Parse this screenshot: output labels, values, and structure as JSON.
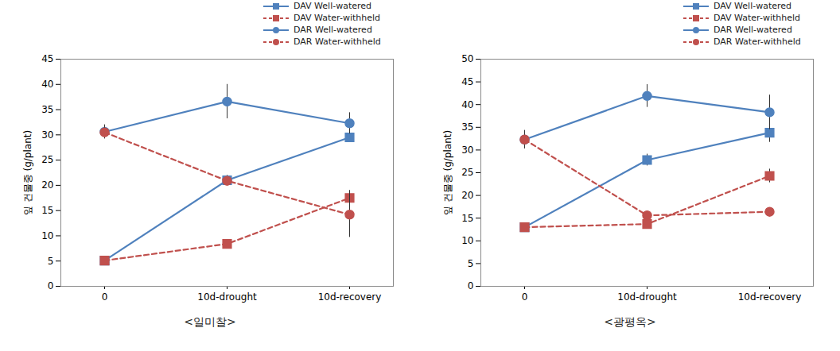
{
  "chart_data": [
    {
      "type": "line",
      "title": "<일미찰>",
      "ylabel": "잎 건물중 (g/plant)",
      "categories": [
        "0",
        "10d-drought",
        "10d-recovery"
      ],
      "ylim": [
        0,
        45
      ],
      "yticks": [
        0,
        5,
        10,
        15,
        20,
        25,
        30,
        35,
        40,
        45
      ],
      "grid": false,
      "legend": "upper right",
      "series": [
        {
          "name": "DAV Well-watered",
          "color": "#4f81bd",
          "marker": "square",
          "line_style": "solid",
          "values": [
            5.1,
            21.0,
            29.5
          ],
          "errors": [
            0.3,
            1.0,
            0.5
          ]
        },
        {
          "name": "DAV Water-withheld",
          "color": "#c0504d",
          "marker": "square",
          "line_style": "dashed",
          "values": [
            5.1,
            8.4,
            17.5
          ],
          "errors": [
            0.3,
            0.4,
            1.5
          ]
        },
        {
          "name": "DAR Well-watered",
          "color": "#4f81bd",
          "marker": "circle",
          "line_style": "solid",
          "values": [
            30.6,
            36.6,
            32.3
          ],
          "errors": [
            1.4,
            3.4,
            2.1
          ]
        },
        {
          "name": "DAR Water-withheld",
          "color": "#c0504d",
          "marker": "circle",
          "line_style": "dashed",
          "values": [
            30.5,
            20.9,
            14.2
          ],
          "errors": [
            1.2,
            0.8,
            4.5
          ]
        }
      ]
    },
    {
      "type": "line",
      "title": "<광평옥>",
      "ylabel": "잎 건물중 (g/plant)",
      "categories": [
        "0",
        "10d-drought",
        "10d-recovery"
      ],
      "ylim": [
        0,
        50
      ],
      "yticks": [
        0,
        5,
        10,
        15,
        20,
        25,
        30,
        35,
        40,
        45,
        50
      ],
      "grid": false,
      "legend": "upper right",
      "series": [
        {
          "name": "DAV Well-watered",
          "color": "#4f81bd",
          "marker": "square",
          "line_style": "solid",
          "values": [
            13.0,
            27.8,
            33.8
          ],
          "errors": [
            0.5,
            1.3,
            2.1
          ]
        },
        {
          "name": "DAV Water-withheld",
          "color": "#c0504d",
          "marker": "square",
          "line_style": "dashed",
          "values": [
            13.0,
            13.7,
            24.3
          ],
          "errors": [
            0.5,
            0.5,
            1.5
          ]
        },
        {
          "name": "DAR Well-watered",
          "color": "#4f81bd",
          "marker": "circle",
          "line_style": "solid",
          "values": [
            32.3,
            41.9,
            38.3
          ],
          "errors": [
            2.0,
            2.5,
            3.8
          ]
        },
        {
          "name": "DAR Water-withheld",
          "color": "#c0504d",
          "marker": "circle",
          "line_style": "dashed",
          "values": [
            32.3,
            15.6,
            16.4
          ],
          "errors": [
            2.0,
            0.8,
            0.5
          ]
        }
      ]
    }
  ]
}
